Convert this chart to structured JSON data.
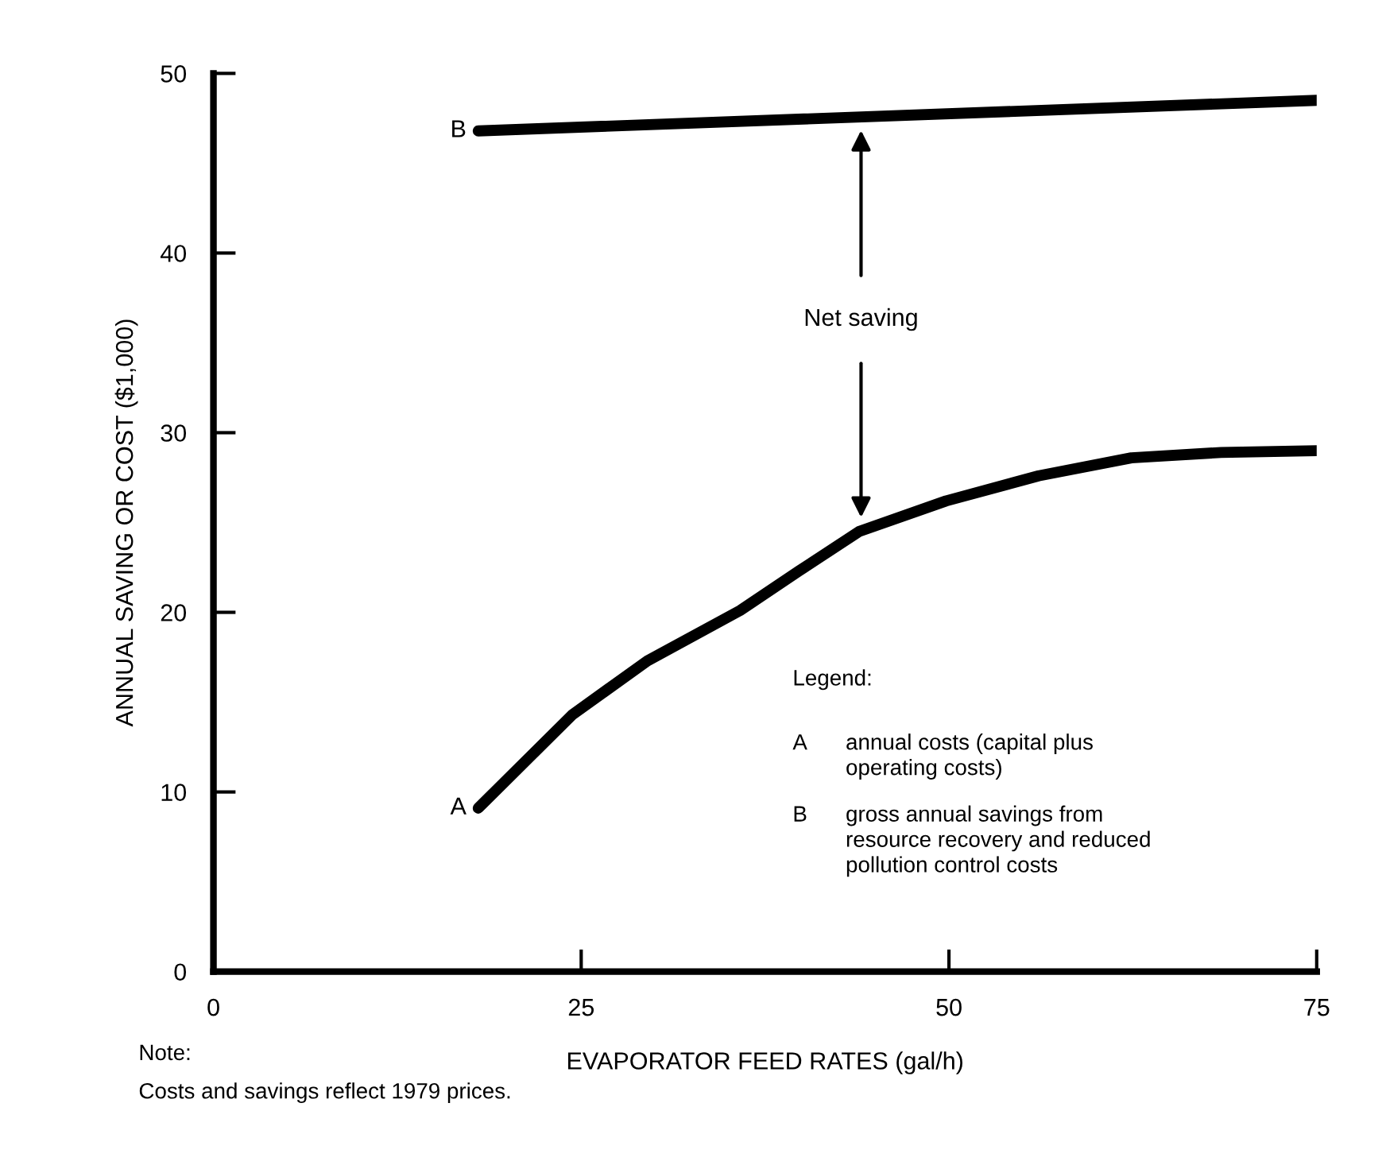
{
  "chart_data": {
    "type": "line",
    "xlabel": "EVAPORATOR FEED RATES (gal/h)",
    "ylabel": "ANNUAL SAVING OR COST ($1,000)",
    "xlim": [
      0,
      75
    ],
    "ylim": [
      0,
      50
    ],
    "xticks": [
      0,
      25,
      50,
      75
    ],
    "yticks": [
      0,
      10,
      20,
      30,
      40,
      50
    ],
    "grid": false,
    "legend": false,
    "marker": "none",
    "line_style": "solid",
    "series": [
      {
        "name": "B",
        "color": "#000000",
        "x": [
          18,
          75
        ],
        "values": [
          46.8,
          48.5
        ]
      },
      {
        "name": "A",
        "color": "#000000",
        "x": [
          18,
          24.4,
          29.5,
          35.8,
          39.8,
          43.9,
          49.8,
          56.1,
          62.4,
          68.5,
          75
        ],
        "values": [
          9.1,
          14.3,
          17.3,
          20.1,
          22.3,
          24.5,
          26.2,
          27.6,
          28.6,
          28.9,
          29.0
        ]
      }
    ],
    "annotations": [
      "Net saving",
      "Legend:",
      "A",
      "annual costs (capital plus\noperating costs)",
      "B",
      "gross annual savings from\nresource recovery and reduced\npollution control costs",
      "Note:",
      "Costs and savings reflect 1979 prices."
    ]
  }
}
